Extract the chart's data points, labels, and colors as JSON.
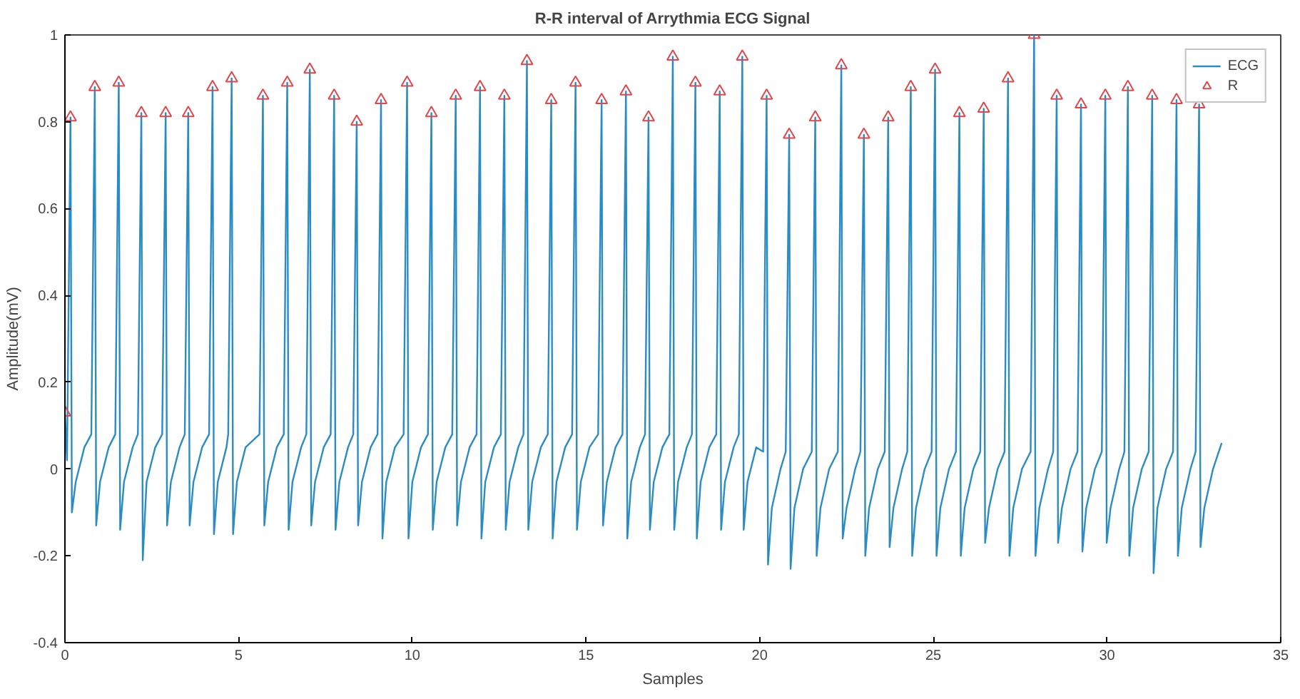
{
  "chart_data": {
    "type": "line",
    "title": "R-R interval of Arrythmia ECG Signal",
    "xlabel": "Samples",
    "ylabel": "Amplitude(mV)",
    "xlim": [
      0,
      35
    ],
    "xticks": [
      0,
      5,
      10,
      15,
      20,
      25,
      30,
      35
    ],
    "ylim": [
      -0.4,
      1
    ],
    "yticks": [
      {
        "value": -0.4,
        "label": "-0.4"
      },
      {
        "value": -0.2,
        "label": "-0.2"
      },
      0,
      {
        "value": 0.2,
        "label": "0.2"
      },
      {
        "value": 0.4,
        "label": "0.4"
      },
      {
        "value": 0.6,
        "label": "0.6"
      },
      {
        "value": 0.8,
        "label": "0.8"
      },
      1
    ],
    "grid": false,
    "legend": "top right",
    "series": [
      {
        "name": "ECG",
        "color": "#2b8cc4",
        "marker": "none",
        "line_style": "solid",
        "x": [
          0,
          0.06,
          0.16,
          0.2,
          0.31,
          0.56,
          0.76,
          0.86,
          0.9,
          1.01,
          1.26,
          1.45,
          1.55,
          1.59,
          1.7,
          1.95,
          2.1,
          2.2,
          2.24,
          2.35,
          2.6,
          2.8,
          2.9,
          2.94,
          3.05,
          3.3,
          3.45,
          3.55,
          3.59,
          3.7,
          3.95,
          4.15,
          4.25,
          4.29,
          4.4,
          4.65,
          4.7,
          4.8,
          4.84,
          4.95,
          5.2,
          5.6,
          5.7,
          5.74,
          5.85,
          6.1,
          6.3,
          6.4,
          6.44,
          6.55,
          6.8,
          6.95,
          7.05,
          7.09,
          7.2,
          7.45,
          7.65,
          7.75,
          7.79,
          7.9,
          8.15,
          8.3,
          8.4,
          8.44,
          8.55,
          8.8,
          9.0,
          9.1,
          9.14,
          9.25,
          9.5,
          9.75,
          9.85,
          9.89,
          10.0,
          10.25,
          10.45,
          10.55,
          10.59,
          10.7,
          10.95,
          11.15,
          11.25,
          11.29,
          11.4,
          11.65,
          11.85,
          11.95,
          11.99,
          12.1,
          12.35,
          12.55,
          12.65,
          12.69,
          12.8,
          13.05,
          13.2,
          13.3,
          13.34,
          13.45,
          13.7,
          13.9,
          14.0,
          14.04,
          14.15,
          14.4,
          14.6,
          14.7,
          14.74,
          14.85,
          15.1,
          15.35,
          15.45,
          15.49,
          15.6,
          15.85,
          16.05,
          16.15,
          16.19,
          16.3,
          16.55,
          16.7,
          16.8,
          16.84,
          16.95,
          17.2,
          17.4,
          17.5,
          17.54,
          17.65,
          17.9,
          18.05,
          18.15,
          18.19,
          18.3,
          18.55,
          18.75,
          18.85,
          18.89,
          19.0,
          19.25,
          19.4,
          19.5,
          19.54,
          19.65,
          19.9,
          20.1,
          20.2,
          20.24,
          20.35,
          20.6,
          20.75,
          20.85,
          20.89,
          21.0,
          21.25,
          21.5,
          21.6,
          21.64,
          21.75,
          22.0,
          22.25,
          22.35,
          22.39,
          22.5,
          22.75,
          22.9,
          23.0,
          23.04,
          23.15,
          23.4,
          23.6,
          23.7,
          23.74,
          23.85,
          24.1,
          24.25,
          24.35,
          24.39,
          24.5,
          24.75,
          24.95,
          25.05,
          25.09,
          25.2,
          25.45,
          25.65,
          25.75,
          25.79,
          25.9,
          26.15,
          26.35,
          26.45,
          26.49,
          26.6,
          26.85,
          27.05,
          27.15,
          27.19,
          27.3,
          27.55,
          27.8,
          27.9,
          27.94,
          28.05,
          28.3,
          28.45,
          28.55,
          28.59,
          28.7,
          28.95,
          29.15,
          29.25,
          29.29,
          29.4,
          29.65,
          29.85,
          29.95,
          29.99,
          30.1,
          30.35,
          30.5,
          30.6,
          30.64,
          30.75,
          31.0,
          31.2,
          31.3,
          31.34,
          31.45,
          31.7,
          31.9,
          32.0,
          32.04,
          32.15,
          32.4,
          32.55,
          32.65,
          32.69,
          32.8,
          33.05,
          33.3
        ],
        "values": [
          0.13,
          0.02,
          0.81,
          -0.1,
          -0.03,
          0.05,
          0.08,
          0.88,
          -0.13,
          -0.03,
          0.05,
          0.08,
          0.89,
          -0.14,
          -0.03,
          0.05,
          0.08,
          0.82,
          -0.21,
          -0.03,
          0.05,
          0.08,
          0.82,
          -0.13,
          -0.03,
          0.05,
          0.08,
          0.82,
          -0.13,
          -0.03,
          0.05,
          0.08,
          0.88,
          -0.15,
          -0.03,
          0.05,
          0.08,
          0.9,
          -0.15,
          -0.03,
          0.05,
          0.08,
          0.86,
          -0.13,
          -0.03,
          0.05,
          0.08,
          0.89,
          -0.14,
          -0.03,
          0.05,
          0.08,
          0.92,
          -0.13,
          -0.03,
          0.05,
          0.08,
          0.86,
          -0.14,
          -0.03,
          0.05,
          0.08,
          0.8,
          -0.13,
          -0.03,
          0.05,
          0.08,
          0.85,
          -0.16,
          -0.03,
          0.05,
          0.08,
          0.89,
          -0.16,
          -0.03,
          0.05,
          0.08,
          0.82,
          -0.14,
          -0.03,
          0.05,
          0.08,
          0.86,
          -0.13,
          -0.03,
          0.05,
          0.08,
          0.88,
          -0.16,
          -0.03,
          0.05,
          0.08,
          0.86,
          -0.14,
          -0.03,
          0.05,
          0.08,
          0.94,
          -0.14,
          -0.03,
          0.05,
          0.08,
          0.85,
          -0.16,
          -0.03,
          0.05,
          0.08,
          0.89,
          -0.14,
          -0.03,
          0.05,
          0.08,
          0.85,
          -0.13,
          -0.03,
          0.05,
          0.08,
          0.87,
          -0.16,
          -0.03,
          0.05,
          0.08,
          0.81,
          -0.14,
          -0.03,
          0.05,
          0.08,
          0.95,
          -0.14,
          -0.03,
          0.05,
          0.08,
          0.89,
          -0.16,
          -0.03,
          0.05,
          0.08,
          0.87,
          -0.14,
          -0.03,
          0.05,
          0.08,
          0.95,
          -0.14,
          -0.03,
          0.05,
          0.04,
          0.86,
          -0.22,
          -0.09,
          0.0,
          0.04,
          0.77,
          -0.23,
          -0.09,
          0.0,
          0.04,
          0.81,
          -0.2,
          -0.09,
          0.0,
          0.04,
          0.93,
          -0.16,
          -0.09,
          0.0,
          0.04,
          0.77,
          -0.2,
          -0.09,
          0.0,
          0.04,
          0.81,
          -0.18,
          -0.09,
          0.0,
          0.04,
          0.88,
          -0.2,
          -0.09,
          0.0,
          0.04,
          0.92,
          -0.2,
          -0.09,
          0.0,
          0.04,
          0.82,
          -0.2,
          -0.09,
          0.0,
          0.04,
          0.83,
          -0.17,
          -0.09,
          0.0,
          0.04,
          0.9,
          -0.2,
          -0.09,
          0.0,
          0.04,
          1.0,
          -0.2,
          -0.09,
          0.0,
          0.04,
          0.86,
          -0.17,
          -0.09,
          0.0,
          0.04,
          0.84,
          -0.19,
          -0.09,
          0.0,
          0.04,
          0.86,
          -0.17,
          -0.09,
          0.0,
          0.04,
          0.88,
          -0.2,
          -0.09,
          0.0,
          0.04,
          0.86,
          -0.24,
          -0.09,
          0.0,
          0.04,
          0.85,
          -0.2,
          -0.09,
          0.0,
          0.04,
          0.84,
          -0.18,
          -0.09,
          0.0,
          0.06
        ]
      },
      {
        "name": "R",
        "type": "scatter",
        "color": "#e0474c",
        "marker": "triangle",
        "x": [
          0,
          0.16,
          0.86,
          1.55,
          2.2,
          2.9,
          3.55,
          4.25,
          4.8,
          5.7,
          6.4,
          7.05,
          7.75,
          8.4,
          9.1,
          9.85,
          10.55,
          11.25,
          11.95,
          12.65,
          13.3,
          14.0,
          14.7,
          15.45,
          16.15,
          16.8,
          17.5,
          18.15,
          18.85,
          19.5,
          20.2,
          20.85,
          21.6,
          22.35,
          23.0,
          23.7,
          24.35,
          25.05,
          25.75,
          26.45,
          27.15,
          27.9,
          28.55,
          29.25,
          29.95,
          30.6,
          31.3,
          32.0,
          32.65
        ],
        "values": [
          0.13,
          0.81,
          0.88,
          0.89,
          0.82,
          0.82,
          0.82,
          0.88,
          0.9,
          0.86,
          0.89,
          0.92,
          0.86,
          0.8,
          0.85,
          0.89,
          0.82,
          0.86,
          0.88,
          0.86,
          0.94,
          0.85,
          0.89,
          0.85,
          0.87,
          0.81,
          0.95,
          0.89,
          0.87,
          0.95,
          0.86,
          0.77,
          0.81,
          0.93,
          0.77,
          0.81,
          0.88,
          0.92,
          0.82,
          0.83,
          0.9,
          1.0,
          0.86,
          0.84,
          0.86,
          0.88,
          0.86,
          0.85,
          0.84
        ]
      }
    ]
  }
}
